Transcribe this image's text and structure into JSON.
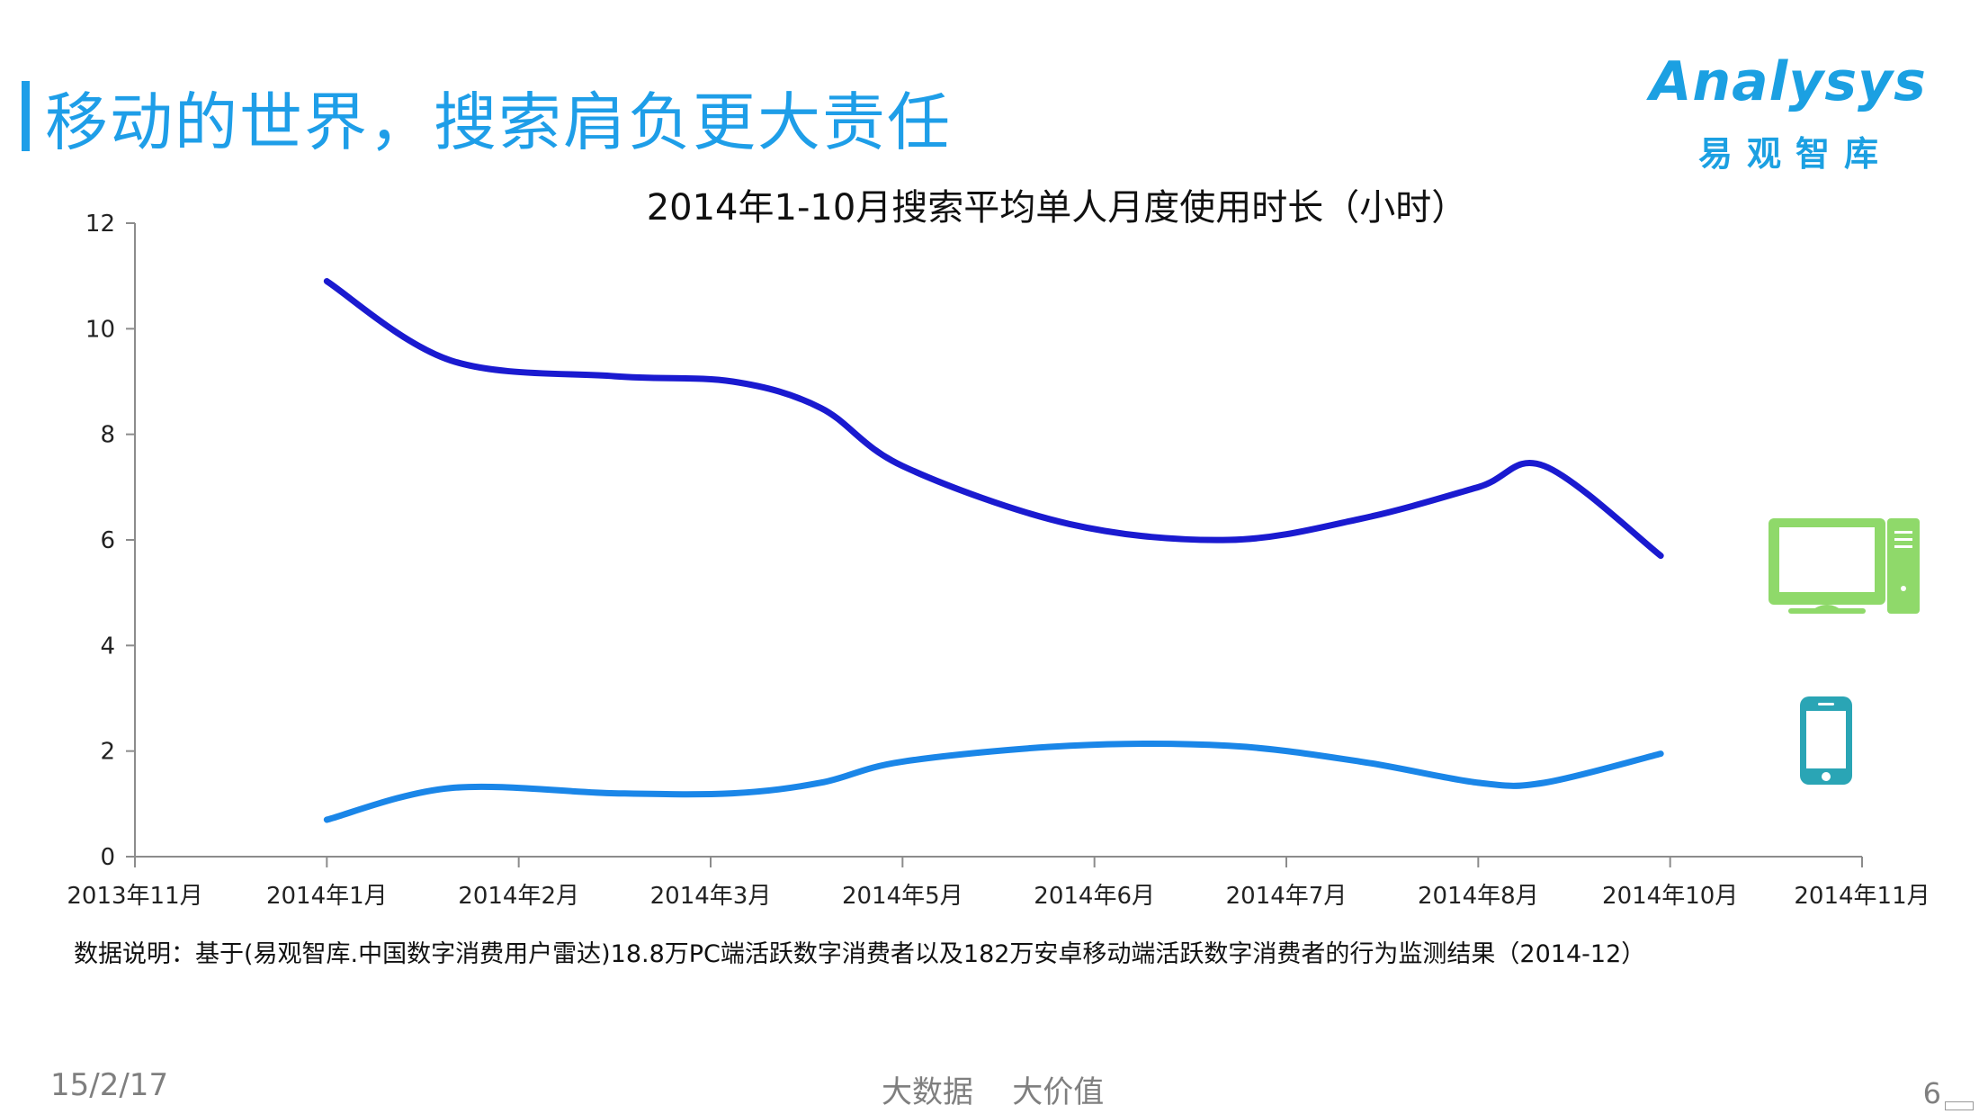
{
  "slide": {
    "title": "移动的世界，搜索肩负更大责任",
    "note": "数据说明：基于(易观智库.中国数字消费用户雷达)18.8万PC端活跃数字消费者以及182万安卓移动端活跃数字消费者的行为监测结果（2014-12）",
    "footer_date": "15/2/17",
    "footer_center": "大数据    大价值",
    "page_number": "6"
  },
  "logo": {
    "word": "Analysys",
    "sub": "易观智库"
  },
  "icons": {
    "pc": "desktop-computer-icon",
    "mobile": "smartphone-icon"
  },
  "colors": {
    "accent": "#1e9ee8",
    "pc_series": "#1a1ad0",
    "mobile_series": "#1a86e8",
    "pc_icon": "#8fd96a",
    "mobile_icon": "#2aa5b5"
  },
  "chart_data": {
    "type": "line",
    "title": "2014年1-10月搜索平均单人月度使用时长（小时）",
    "xlabel": "",
    "ylabel": "",
    "categories": [
      "2013年11月",
      "2014年1月",
      "2014年2月",
      "2014年3月",
      "2014年5月",
      "2014年6月",
      "2014年7月",
      "2014年8月",
      "2014年10月",
      "2014年11月"
    ],
    "ylim": [
      0,
      12
    ],
    "yticks": [
      0,
      2,
      4,
      6,
      8,
      10,
      12
    ],
    "smooth": true,
    "grid": false,
    "legend": "icons at right",
    "series": [
      {
        "key": "pc",
        "x": [
          "2014-01-01",
          "2014-01-21",
          "2014-02-15",
          "2014-03-08",
          "2014-04-05",
          "2014-05-01",
          "2014-05-28",
          "2014-06-22",
          "2014-07-13",
          "2014-08-01",
          "2014-08-22",
          "2014-09-28"
        ],
        "values": [
          10.9,
          9.4,
          9.1,
          9.0,
          8.5,
          7.4,
          6.3,
          6.0,
          6.4,
          7.0,
          7.4,
          5.7
        ]
      },
      {
        "key": "mobile",
        "x": [
          "2014-01-01",
          "2014-01-21",
          "2014-02-15",
          "2014-03-08",
          "2014-04-05",
          "2014-05-01",
          "2014-05-28",
          "2014-06-22",
          "2014-07-13",
          "2014-08-01",
          "2014-08-22",
          "2014-09-28"
        ],
        "values": [
          0.7,
          1.3,
          1.2,
          1.2,
          1.4,
          1.8,
          2.1,
          2.1,
          1.8,
          1.4,
          1.4,
          1.95
        ]
      }
    ]
  }
}
